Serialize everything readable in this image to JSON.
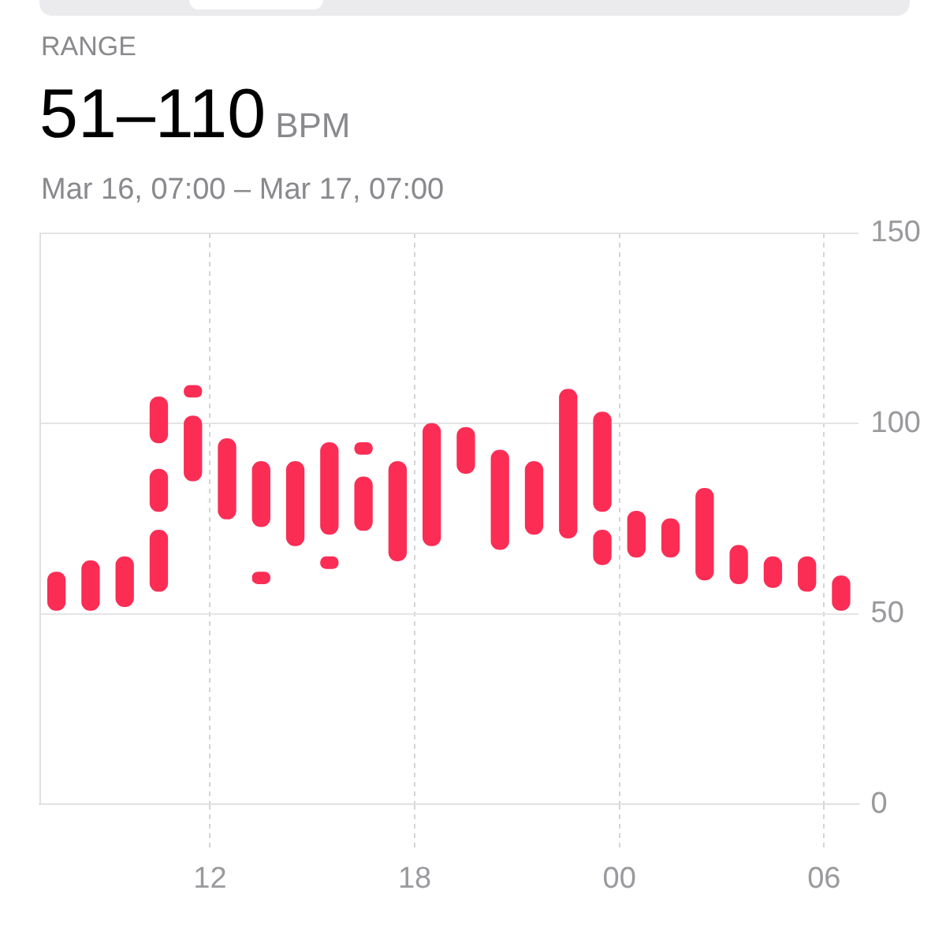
{
  "chart_data": {
    "type": "bar",
    "title": "51–110",
    "ylabel": "BPM",
    "subtitle": "Mar 16, 07:00 – Mar 17, 07:00",
    "annotations": [
      "RANGE"
    ],
    "x": [
      "--03-16T07:30",
      "--03-16T08:30",
      "--03-16T09:30",
      "--03-16T10:30",
      "--03-16T11:30",
      "--03-16T12:30",
      "--03-16T13:30",
      "--03-16T14:30",
      "--03-16T15:30",
      "--03-16T16:30",
      "--03-16T17:30",
      "--03-16T18:30",
      "--03-16T19:30",
      "--03-16T20:30",
      "--03-16T21:30",
      "--03-16T22:30",
      "--03-16T23:30",
      "--03-17T00:30",
      "--03-17T01:30",
      "--03-17T02:30",
      "--03-17T03:30",
      "--03-17T04:30",
      "--03-17T05:30",
      "--03-17T06:30"
    ],
    "series": [
      {
        "color": "#fc2d55",
        "base": [
          51,
          51,
          52,
          56,
          85,
          75,
          73,
          68,
          71,
          72,
          64,
          68,
          87,
          67,
          71,
          70,
          77,
          65,
          65,
          59,
          58,
          57,
          56,
          51
        ],
        "values": [
          10,
          13,
          13,
          16,
          17,
          21,
          17,
          22,
          24,
          14,
          26,
          32,
          12,
          26,
          19,
          39,
          26,
          12,
          10,
          24,
          10,
          8,
          9,
          9
        ]
      },
      {
        "color": "#fc2d55",
        "base": [
          null,
          null,
          null,
          77,
          107,
          null,
          58,
          null,
          62,
          92,
          null,
          null,
          null,
          null,
          null,
          null,
          63,
          null,
          null,
          null,
          null,
          null,
          null,
          null
        ],
        "values": [
          null,
          null,
          null,
          11,
          3,
          null,
          3,
          null,
          3,
          3,
          null,
          null,
          null,
          null,
          null,
          null,
          9,
          null,
          null,
          null,
          null,
          null,
          null,
          null
        ]
      },
      {
        "color": "#fc2d55",
        "base": [
          null,
          null,
          null,
          95,
          null,
          null,
          null,
          null,
          null,
          null,
          null,
          null,
          null,
          null,
          null,
          null,
          null,
          null,
          null,
          null,
          null,
          null,
          null,
          null
        ],
        "values": [
          null,
          null,
          null,
          12,
          null,
          null,
          null,
          null,
          null,
          null,
          null,
          null,
          null,
          null,
          null,
          null,
          null,
          null,
          null,
          null,
          null,
          null,
          null,
          null
        ]
      }
    ],
    "xlim": [
      "--03-16T07:00",
      "--03-17T07:00"
    ],
    "xticks": [
      {
        "value": "--03-16T12:00",
        "label": "12"
      },
      {
        "value": "--03-16T18:00",
        "label": "18"
      },
      {
        "value": "--03-17T00:00",
        "label": "00"
      },
      {
        "value": "--03-17T06:00",
        "label": "06"
      }
    ],
    "ylim": [
      0,
      150
    ],
    "yticks": [
      0,
      50,
      100,
      150
    ],
    "grid": true,
    "legend": false
  }
}
